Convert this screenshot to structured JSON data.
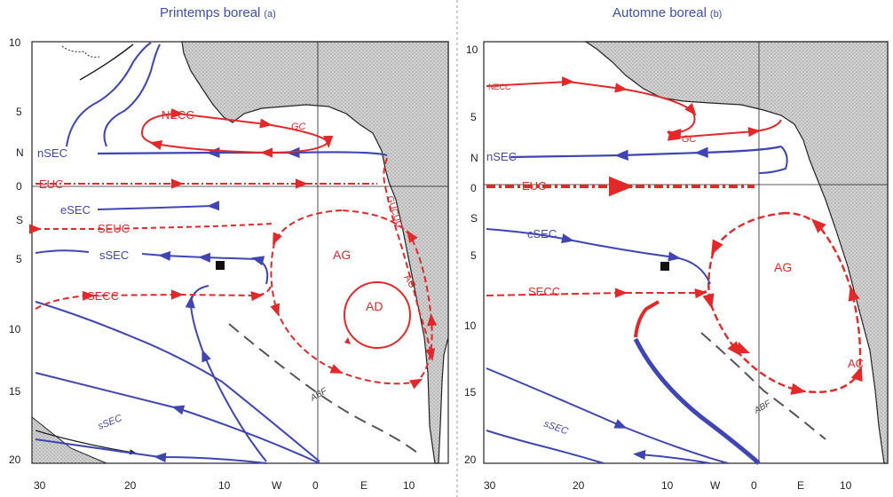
{
  "panels": [
    {
      "title": "Printemps boreal",
      "label": "(a)",
      "y_ticks": [
        "10",
        "5",
        "N",
        "0",
        "S",
        "5",
        "10",
        "15",
        "20"
      ],
      "x_ticks": [
        "30",
        "20",
        "10",
        "W",
        "0",
        "E",
        "10"
      ],
      "labels": {
        "necc": "NECC",
        "gc": "GC",
        "nsec": "nSEC",
        "euc": "EUC",
        "esec": "eSEC",
        "seuc": "SEUC",
        "ssec_top": "sSEC",
        "ag": "AG",
        "ad": "AD",
        "secc": "SECC",
        "abf": "ABF",
        "ac": "AC",
        "gucuc": "GUCUC",
        "ssec_bot": "sSEC"
      }
    },
    {
      "title": "Automne boreal",
      "label": "(b)",
      "y_ticks": [
        "10",
        "5",
        "N",
        "0",
        "S",
        "5",
        "10",
        "15",
        "20"
      ],
      "x_ticks": [
        "30",
        "20",
        "10",
        "W",
        "0",
        "E",
        "10"
      ],
      "labels": {
        "necc": "NECC",
        "gc": "GC",
        "nsec": "nSEC",
        "euc": "EUC",
        "csec": "cSEC",
        "ag": "AG",
        "secc": "SECC",
        "abf": "ABF",
        "ac": "AC",
        "ssec_bot": "sSEC"
      }
    }
  ],
  "colors": {
    "warm": "#e3282a",
    "cold": "#3f46b3",
    "land": "#c4c4c4",
    "coast": "#222222",
    "abf": "#555555"
  }
}
